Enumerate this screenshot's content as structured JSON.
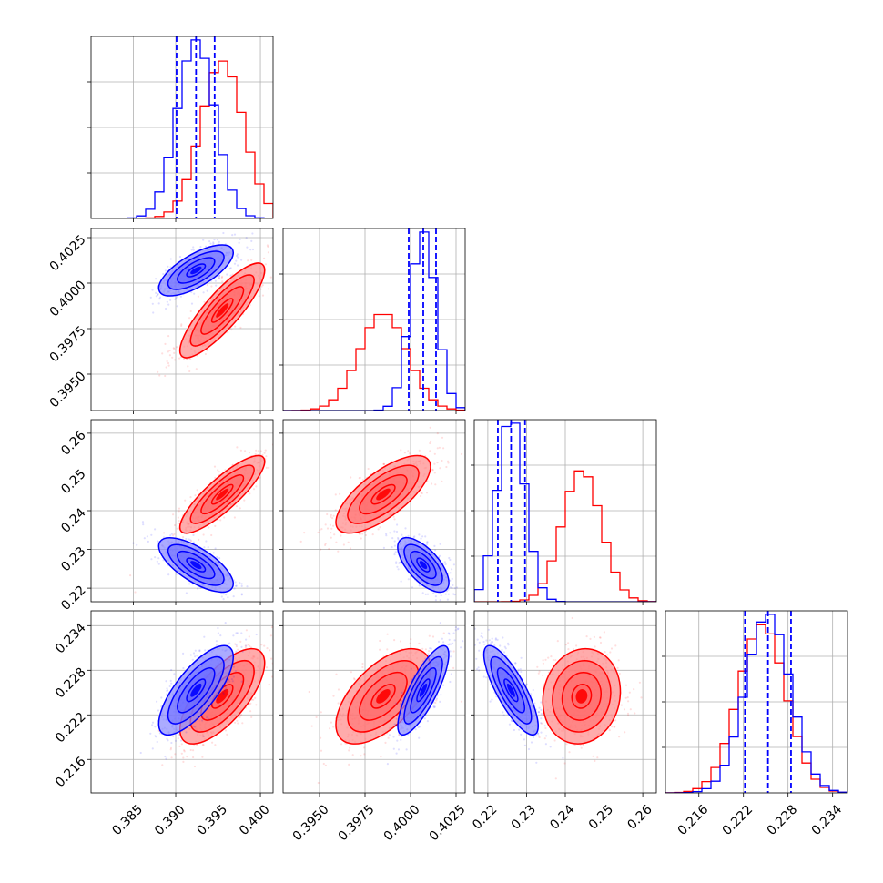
{
  "chart_data": {
    "type": "corner",
    "grid": true,
    "colors": {
      "blue": "#0000ff",
      "red": "#ff0000"
    },
    "parameters": [
      {
        "range": [
          0.38,
          0.4015
        ],
        "ticks": [
          "0.385",
          "0.390",
          "0.395",
          "0.400"
        ],
        "tick_values": [
          0.385,
          0.39,
          0.395,
          0.4
        ]
      },
      {
        "range": [
          0.393,
          0.403
        ],
        "ticks": [
          "0.3950",
          "0.3975",
          "0.4000",
          "0.4025"
        ],
        "tick_values": [
          0.395,
          0.3975,
          0.4,
          0.4025
        ]
      },
      {
        "range": [
          0.2165,
          0.2635
        ],
        "ticks": [
          "0.22",
          "0.23",
          "0.24",
          "0.25",
          "0.26"
        ],
        "tick_values": [
          0.22,
          0.23,
          0.24,
          0.25,
          0.26
        ]
      },
      {
        "range": [
          0.2115,
          0.236
        ],
        "ticks": [
          "0.216",
          "0.222",
          "0.228",
          "0.234"
        ],
        "tick_values": [
          0.216,
          0.222,
          0.228,
          0.234
        ]
      }
    ],
    "quantiles_blue": [
      [
        0.3901,
        0.3924,
        0.3946
      ],
      [
        0.3999,
        0.4007,
        0.4014
      ],
      [
        0.2226,
        0.226,
        0.2296
      ],
      [
        0.2222,
        0.2253,
        0.2284
      ]
    ],
    "distributions": {
      "blue": {
        "mean": [
          0.3924,
          0.4007,
          0.226,
          0.2253
        ],
        "sd": [
          0.0022,
          0.0007,
          0.0035,
          0.003
        ],
        "corr": {
          "0-1": 0.7,
          "0-2": -0.7,
          "0-3": 0.75,
          "1-2": -0.65,
          "1-3": 0.8,
          "2-3": -0.8
        }
      },
      "red": {
        "mean": [
          0.3955,
          0.3985,
          0.2442,
          0.2245
        ],
        "sd": [
          0.0025,
          0.0013,
          0.005,
          0.0032
        ],
        "corr": {
          "0-1": 0.85,
          "0-2": 0.85,
          "0-3": 0.7,
          "1-2": 0.72,
          "1-3": 0.6,
          "2-3": 0.1
        }
      }
    }
  }
}
